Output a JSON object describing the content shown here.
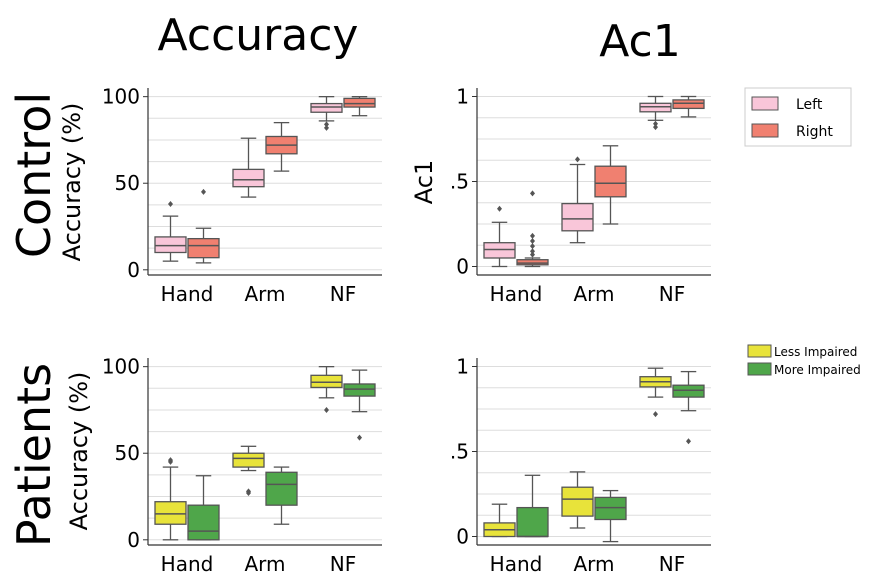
{
  "col_titles": [
    "Accuracy",
    "Ac1"
  ],
  "row_titles": [
    "Control",
    "Patients"
  ],
  "legends": {
    "control": [
      {
        "name": "Left",
        "color": "#f9c6d9"
      },
      {
        "name": "Right",
        "color": "#f08070"
      }
    ],
    "patients": [
      {
        "name": "Less Impaired",
        "color": "#e8e33a"
      },
      {
        "name": "More Impaired",
        "color": "#4fa64a"
      }
    ]
  },
  "chart_data": [
    {
      "type": "box",
      "row": "Control",
      "column": "Accuracy",
      "ylabel": "Accuracy (%)",
      "categories": [
        "Hand",
        "Arm",
        "NF"
      ],
      "yticks": [
        "0",
        "50",
        "100"
      ],
      "ytick_values": [
        0,
        50,
        100
      ],
      "ylim": [
        -3,
        105
      ],
      "grid": true,
      "series": [
        {
          "name": "Left",
          "color": "#f9c6d9",
          "boxes": [
            {
              "whislo": 5,
              "q1": 10,
              "med": 14,
              "q3": 19,
              "whishi": 31,
              "fliers": [
                38
              ]
            },
            {
              "whislo": 42,
              "q1": 48,
              "med": 52,
              "q3": 58,
              "whishi": 76,
              "fliers": []
            },
            {
              "whislo": 86,
              "q1": 91,
              "med": 94,
              "q3": 96,
              "whishi": 100,
              "fliers": [
                82,
                84
              ]
            }
          ]
        },
        {
          "name": "Right",
          "color": "#f08070",
          "boxes": [
            {
              "whislo": 4,
              "q1": 7,
              "med": 14,
              "q3": 18,
              "whishi": 24,
              "fliers": [
                45
              ]
            },
            {
              "whislo": 57,
              "q1": 67,
              "med": 72,
              "q3": 77,
              "whishi": 85,
              "fliers": []
            },
            {
              "whislo": 89,
              "q1": 94,
              "med": 96,
              "q3": 99,
              "whishi": 100,
              "fliers": []
            }
          ]
        }
      ]
    },
    {
      "type": "box",
      "row": "Control",
      "column": "Ac1",
      "ylabel": "Ac1",
      "categories": [
        "Hand",
        "Arm",
        "NF"
      ],
      "yticks": [
        "0",
        ".5",
        "1"
      ],
      "ytick_values": [
        0,
        0.5,
        1
      ],
      "ylim": [
        -0.05,
        1.05
      ],
      "grid": true,
      "series": [
        {
          "name": "Left",
          "color": "#f9c6d9",
          "boxes": [
            {
              "whislo": 0.0,
              "q1": 0.05,
              "med": 0.1,
              "q3": 0.14,
              "whishi": 0.26,
              "fliers": [
                0.34
              ]
            },
            {
              "whislo": 0.14,
              "q1": 0.21,
              "med": 0.28,
              "q3": 0.37,
              "whishi": 0.6,
              "fliers": [
                0.63
              ]
            },
            {
              "whislo": 0.86,
              "q1": 0.91,
              "med": 0.94,
              "q3": 0.96,
              "whishi": 1.0,
              "fliers": [
                0.82,
                0.84
              ]
            }
          ]
        },
        {
          "name": "Right",
          "color": "#f08070",
          "boxes": [
            {
              "whislo": 0.0,
              "q1": 0.01,
              "med": 0.02,
              "q3": 0.04,
              "whishi": 0.05,
              "fliers": [
                0.07,
                0.09,
                0.12,
                0.15,
                0.18,
                0.43
              ]
            },
            {
              "whislo": 0.25,
              "q1": 0.41,
              "med": 0.49,
              "q3": 0.59,
              "whishi": 0.71,
              "fliers": []
            },
            {
              "whislo": 0.88,
              "q1": 0.93,
              "med": 0.96,
              "q3": 0.98,
              "whishi": 1.0,
              "fliers": []
            }
          ]
        }
      ]
    },
    {
      "type": "box",
      "row": "Patients",
      "column": "Accuracy",
      "ylabel": "Accuracy (%)",
      "categories": [
        "Hand",
        "Arm",
        "NF"
      ],
      "yticks": [
        "0",
        "50",
        "100"
      ],
      "ytick_values": [
        0,
        50,
        100
      ],
      "ylim": [
        -3,
        105
      ],
      "grid": true,
      "series": [
        {
          "name": "Less Impaired",
          "color": "#e8e33a",
          "boxes": [
            {
              "whislo": 0,
              "q1": 9,
              "med": 15,
              "q3": 22,
              "whishi": 42,
              "fliers": [
                45,
                46
              ]
            },
            {
              "whislo": 40,
              "q1": 42,
              "med": 47,
              "q3": 50,
              "whishi": 54,
              "fliers": [
                27,
                28
              ]
            },
            {
              "whislo": 82,
              "q1": 88,
              "med": 91,
              "q3": 95,
              "whishi": 100,
              "fliers": [
                75
              ]
            }
          ]
        },
        {
          "name": "More Impaired",
          "color": "#4fa64a",
          "boxes": [
            {
              "whislo": 0,
              "q1": 0,
              "med": 5,
              "q3": 20,
              "whishi": 37,
              "fliers": []
            },
            {
              "whislo": 9,
              "q1": 20,
              "med": 32,
              "q3": 39,
              "whishi": 42,
              "fliers": []
            },
            {
              "whislo": 74,
              "q1": 83,
              "med": 87,
              "q3": 90,
              "whishi": 98,
              "fliers": [
                59
              ]
            }
          ]
        }
      ]
    },
    {
      "type": "box",
      "row": "Patients",
      "column": "Ac1",
      "ylabel": "",
      "categories": [
        "Hand",
        "Arm",
        "NF"
      ],
      "yticks": [
        "0",
        ".5",
        "1"
      ],
      "ytick_values": [
        0,
        0.5,
        1
      ],
      "ylim": [
        -0.05,
        1.05
      ],
      "grid": true,
      "series": [
        {
          "name": "Less Impaired",
          "color": "#e8e33a",
          "boxes": [
            {
              "whislo": 0.0,
              "q1": 0.0,
              "med": 0.04,
              "q3": 0.08,
              "whishi": 0.19,
              "fliers": []
            },
            {
              "whislo": 0.05,
              "q1": 0.12,
              "med": 0.22,
              "q3": 0.29,
              "whishi": 0.38,
              "fliers": []
            },
            {
              "whislo": 0.82,
              "q1": 0.88,
              "med": 0.91,
              "q3": 0.94,
              "whishi": 0.99,
              "fliers": [
                0.72
              ]
            }
          ]
        },
        {
          "name": "More Impaired",
          "color": "#4fa64a",
          "boxes": [
            {
              "whislo": 0.0,
              "q1": 0.0,
              "med": 0.0,
              "q3": 0.17,
              "whishi": 0.36,
              "fliers": []
            },
            {
              "whislo": -0.03,
              "q1": 0.1,
              "med": 0.17,
              "q3": 0.23,
              "whishi": 0.27,
              "fliers": []
            },
            {
              "whislo": 0.74,
              "q1": 0.82,
              "med": 0.86,
              "q3": 0.89,
              "whishi": 0.97,
              "fliers": [
                0.56
              ]
            }
          ]
        }
      ]
    }
  ]
}
